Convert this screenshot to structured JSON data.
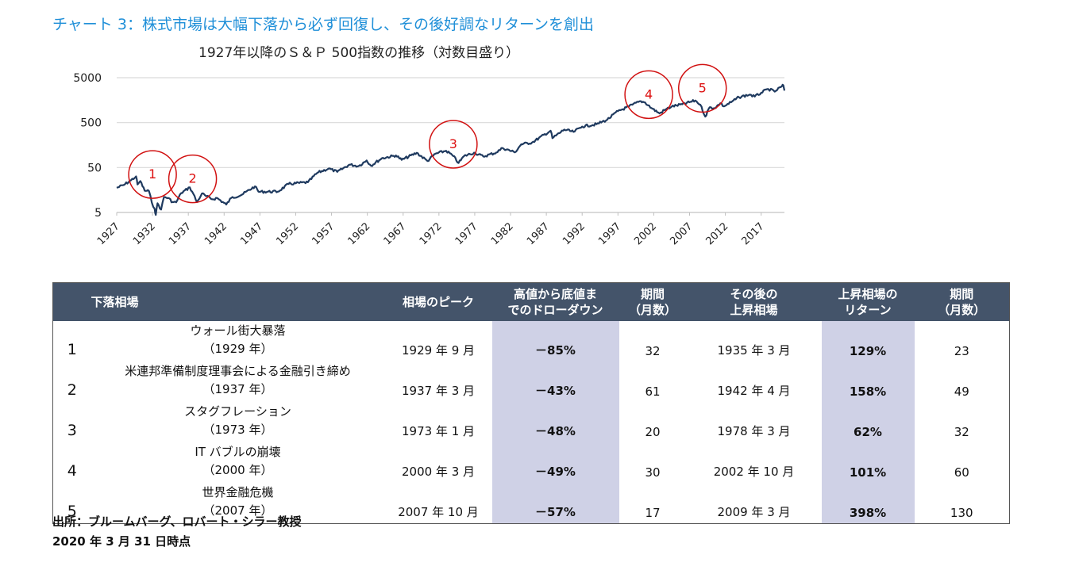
{
  "header": {
    "title": "チャート 3：株式市場は大幅下落から必ず回復し、その後好調なリターンを創出",
    "subtitle": "1927年以降のＳ＆Ｐ 500指数の推移（対数目盛り）"
  },
  "chart_data": {
    "type": "line",
    "title": "1927年以降のＳ＆Ｐ 500指数の推移（対数目盛り）",
    "scale": "log",
    "y_ticks": [
      "5",
      "50",
      "500",
      "5000"
    ],
    "y_tick_values": [
      5,
      50,
      500,
      5000
    ],
    "ylim": [
      5,
      5000
    ],
    "x_ticks": [
      "1927",
      "1932",
      "1937",
      "1942",
      "1947",
      "1952",
      "1957",
      "1962",
      "1967",
      "1972",
      "1977",
      "1982",
      "1987",
      "1992",
      "1997",
      "2002",
      "2007",
      "2012",
      "2017"
    ],
    "xlim": [
      1927,
      2020.25
    ],
    "grid": true,
    "line_color": "#1f3a5f",
    "series": [
      {
        "points": [
          [
            1927.0,
            17.7
          ],
          [
            1928.0,
            20.5
          ],
          [
            1929.0,
            26.0
          ],
          [
            1929.7,
            31.7
          ],
          [
            1929.9,
            21.0
          ],
          [
            1930.3,
            25.0
          ],
          [
            1930.9,
            15.3
          ],
          [
            1931.5,
            15.0
          ],
          [
            1931.9,
            8.3
          ],
          [
            1932.3,
            6.0
          ],
          [
            1932.45,
            4.4
          ],
          [
            1932.7,
            8.0
          ],
          [
            1933.2,
            5.8
          ],
          [
            1933.6,
            11.0
          ],
          [
            1934.2,
            10.5
          ],
          [
            1934.8,
            8.5
          ],
          [
            1935.3,
            8.4
          ],
          [
            1936.0,
            13.5
          ],
          [
            1937.2,
            18.1
          ],
          [
            1937.7,
            13.0
          ],
          [
            1938.2,
            8.5
          ],
          [
            1938.4,
            9.5
          ],
          [
            1938.9,
            13.2
          ],
          [
            1939.5,
            11.5
          ],
          [
            1940.4,
            9.8
          ],
          [
            1941.0,
            10.5
          ],
          [
            1942.3,
            7.5
          ],
          [
            1943.0,
            10.5
          ],
          [
            1944.5,
            12.5
          ],
          [
            1946.3,
            19.0
          ],
          [
            1946.8,
            14.5
          ],
          [
            1949.5,
            14.5
          ],
          [
            1951.0,
            21.5
          ],
          [
            1953.7,
            23.5
          ],
          [
            1955.0,
            38.0
          ],
          [
            1956.6,
            47.5
          ],
          [
            1957.8,
            40.0
          ],
          [
            1959.5,
            58.0
          ],
          [
            1960.8,
            54.0
          ],
          [
            1961.9,
            72.0
          ],
          [
            1962.5,
            55.0
          ],
          [
            1964.0,
            80.0
          ],
          [
            1966.0,
            93.0
          ],
          [
            1966.8,
            74.0
          ],
          [
            1968.9,
            106.0
          ],
          [
            1970.4,
            70.0
          ],
          [
            1971.5,
            101.0
          ],
          [
            1973.0,
            118.0
          ],
          [
            1974.0,
            90.0
          ],
          [
            1974.75,
            63.0
          ],
          [
            1975.5,
            90.0
          ],
          [
            1976.9,
            107.0
          ],
          [
            1978.2,
            88.0
          ],
          [
            1980.0,
            108.0
          ],
          [
            1980.9,
            136.0
          ],
          [
            1982.6,
            109.0
          ],
          [
            1983.5,
            165.0
          ],
          [
            1985.0,
            180.0
          ],
          [
            1987.6,
            330.0
          ],
          [
            1987.85,
            225.0
          ],
          [
            1989.5,
            350.0
          ],
          [
            1990.8,
            310.0
          ],
          [
            1992.0,
            410.0
          ],
          [
            1994.0,
            460.0
          ],
          [
            1995.5,
            580.0
          ],
          [
            1997.0,
            900.0
          ],
          [
            1998.5,
            1130.0
          ],
          [
            1999.0,
            1250.0
          ],
          [
            2000.2,
            1500.0
          ],
          [
            2000.8,
            1400.0
          ],
          [
            2001.7,
            1050.0
          ],
          [
            2002.8,
            800.0
          ],
          [
            2003.5,
            950.0
          ],
          [
            2004.5,
            1140.0
          ],
          [
            2006.0,
            1280.0
          ],
          [
            2007.8,
            1550.0
          ],
          [
            2008.5,
            1250.0
          ],
          [
            2009.2,
            680.0
          ],
          [
            2009.8,
            1100.0
          ],
          [
            2010.5,
            1050.0
          ],
          [
            2011.3,
            1350.0
          ],
          [
            2011.8,
            1150.0
          ],
          [
            2012.8,
            1420.0
          ],
          [
            2013.9,
            1840.0
          ],
          [
            2015.4,
            2100.0
          ],
          [
            2016.1,
            1900.0
          ],
          [
            2017.0,
            2300.0
          ],
          [
            2018.0,
            2800.0
          ],
          [
            2018.9,
            2450.0
          ],
          [
            2019.9,
            3230.0
          ],
          [
            2020.1,
            3380.0
          ],
          [
            2020.25,
            2580.0
          ]
        ]
      }
    ],
    "markers": [
      {
        "label": "1",
        "x": 1932.0,
        "y": 35
      },
      {
        "label": "2",
        "x": 1937.6,
        "y": 28
      },
      {
        "label": "3",
        "x": 1974.0,
        "y": 165
      },
      {
        "label": "4",
        "x": 2001.3,
        "y": 2100
      },
      {
        "label": "5",
        "x": 2008.8,
        "y": 2900
      }
    ]
  },
  "table": {
    "headers": [
      [
        "下落相場"
      ],
      [
        "相場のピーク"
      ],
      [
        "高値から底値ま",
        "でのドローダウン"
      ],
      [
        "期間",
        "（月数）"
      ],
      [
        "その後の",
        "上昇相場"
      ],
      [
        "上昇相場の",
        "リターン"
      ],
      [
        "期間",
        "（月数）"
      ]
    ],
    "rows": [
      {
        "num": "1",
        "name": "ウォール街大暴落",
        "year": "（1929 年）",
        "peak": "1929 年 9 月",
        "drawdown": "－85%",
        "months": "32",
        "rally": "1935 年 3 月",
        "ret": "129%",
        "months2": "23"
      },
      {
        "num": "2",
        "name": "米連邦準備制度理事会による金融引き締め",
        "year": "（1937 年）",
        "peak": "1937 年 3 月",
        "drawdown": "－43%",
        "months": "61",
        "rally": "1942 年 4 月",
        "ret": "158%",
        "months2": "49"
      },
      {
        "num": "3",
        "name": "スタグフレーション",
        "year": "（1973 年）",
        "peak": "1973 年 1 月",
        "drawdown": "－48%",
        "months": "20",
        "rally": "1978 年 3 月",
        "ret": "62%",
        "months2": "32"
      },
      {
        "num": "4",
        "name": "IT バブルの崩壊",
        "year": "（2000 年）",
        "peak": "2000 年 3 月",
        "drawdown": "－49%",
        "months": "30",
        "rally": "2002 年 10 月",
        "ret": "101%",
        "months2": "60"
      },
      {
        "num": "5",
        "name": "世界金融危機",
        "year": "（2007 年）",
        "peak": "2007 年 10 月",
        "drawdown": "－57%",
        "months": "17",
        "rally": "2009 年 3 月",
        "ret": "398%",
        "months2": "130"
      }
    ]
  },
  "footer": {
    "source": "出所：ブルームバーグ、ロバート・シラー教授",
    "date": "2020 年 3 月 31 日時点"
  },
  "colors": {
    "title": "#1f8fd8",
    "header_bg": "#44546a",
    "highlight_bg": "#cfd1e6",
    "marker": "#d11111",
    "line": "#1f3a5f"
  }
}
